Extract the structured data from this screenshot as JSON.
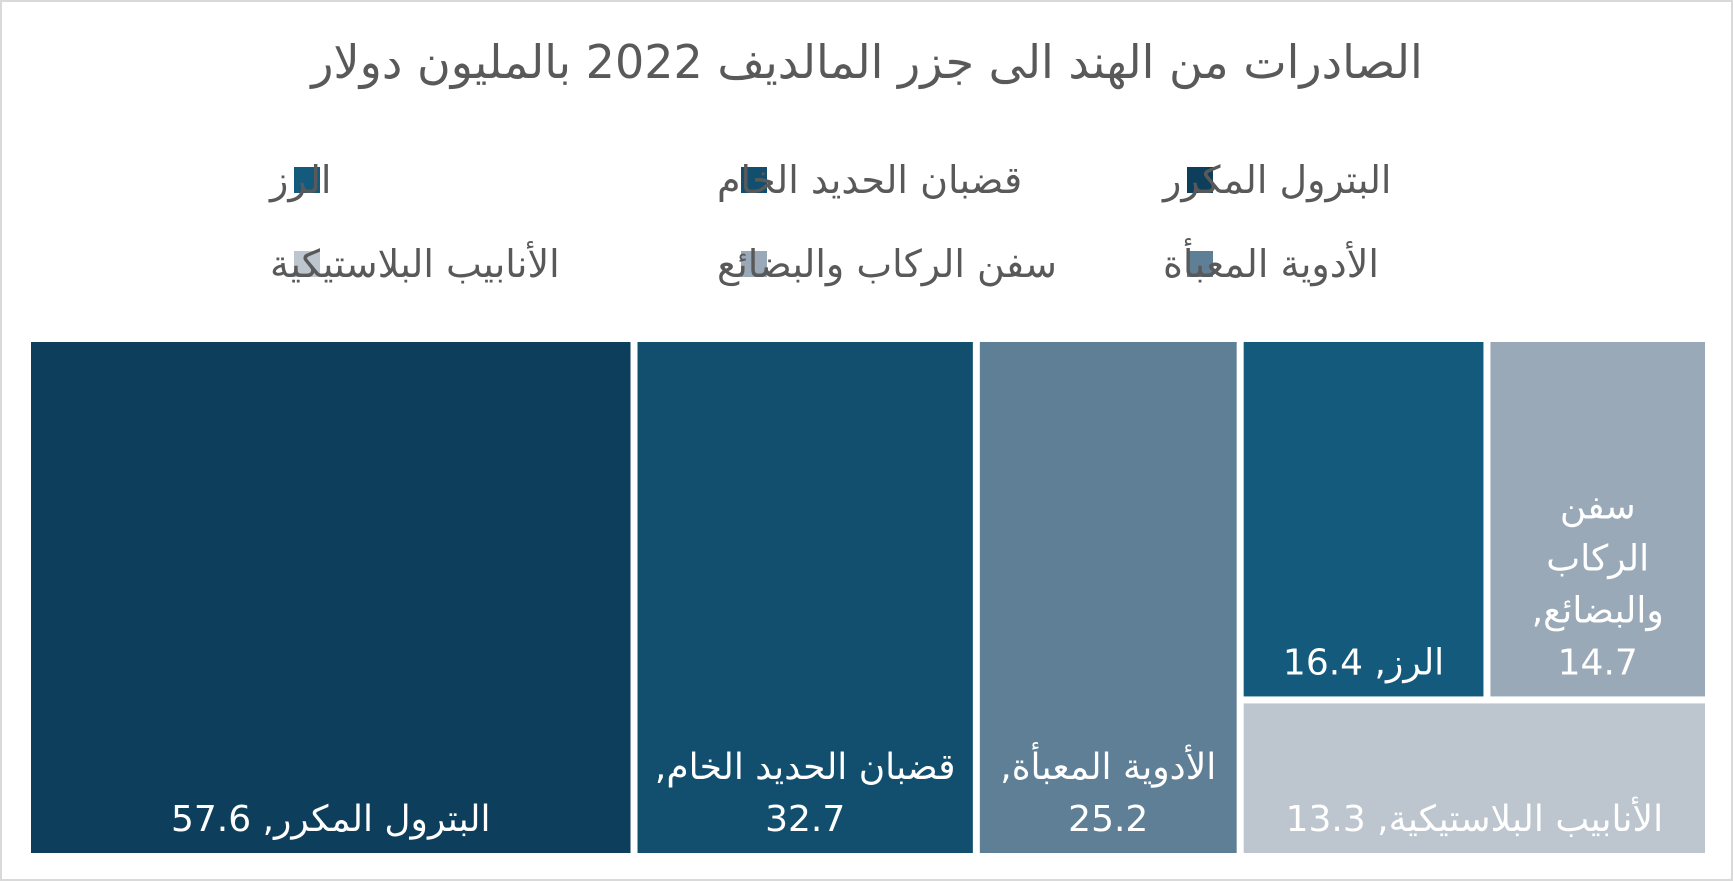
{
  "chart_data": {
    "type": "treemap",
    "title": "الصادرات من الهند الى جزر المالديف 2022 بالمليون دولار",
    "legend_position": "top",
    "series": [
      {
        "name": "البترول المكرر",
        "value": 57.6,
        "color": "#0d3f5c",
        "label": "البترول المكرر, 57.6"
      },
      {
        "name": "قضبان الحديد الخام",
        "value": 32.7,
        "color": "#124e6e",
        "label": "قضبان الحديد الخام, 32.7"
      },
      {
        "name": "الرز",
        "value": 16.4,
        "color": "#135a7d",
        "label": "الرز, 16.4"
      },
      {
        "name": "الأدوية المعبأة",
        "value": 25.2,
        "color": "#5f7f96",
        "label": "الأدوية المعبأة, 25.2"
      },
      {
        "name": "سفن الركاب والبضائع",
        "value": 14.7,
        "color": "#9aa9b7",
        "label": "سفن الركاب والبضائع, 14.7"
      },
      {
        "name": "الأنابيب البلاستيكية",
        "value": 13.3,
        "color": "#bdc5ce",
        "label": "الأنابيب البلاستيكية, 13.3"
      }
    ]
  }
}
